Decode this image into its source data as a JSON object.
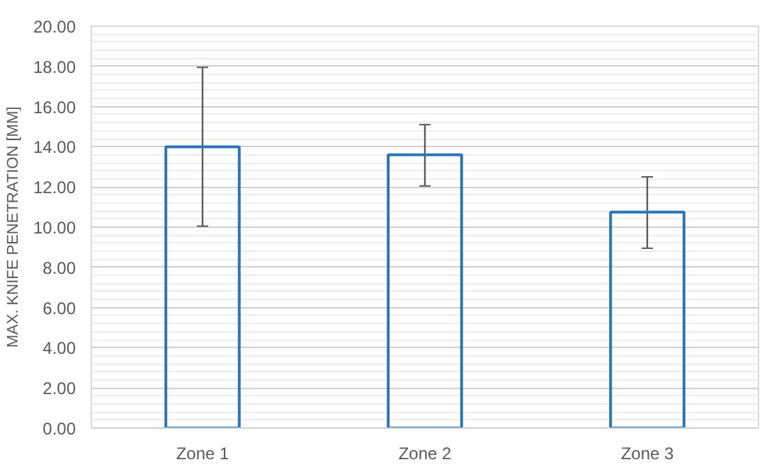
{
  "chart_data": {
    "type": "bar",
    "ylabel": "MAX. KNIFE PENETRATION [MM]",
    "categories": [
      "Zone 1",
      "Zone 2",
      "Zone 3"
    ],
    "values": [
      14.0,
      13.6,
      10.75
    ],
    "color": "#2e75b6",
    "errors": [
      [
        10.05,
        17.95
      ],
      [
        12.05,
        15.1
      ],
      [
        8.95,
        12.5
      ]
    ],
    "ylim": [
      0,
      20
    ],
    "yticks": [
      {
        "value": 0,
        "label": "0.00"
      },
      {
        "value": 2,
        "label": "2.00"
      },
      {
        "value": 4,
        "label": "4.00"
      },
      {
        "value": 6,
        "label": "6.00"
      },
      {
        "value": 8,
        "label": "8.00"
      },
      {
        "value": 10,
        "label": "10.00"
      },
      {
        "value": 12,
        "label": "12.00"
      },
      {
        "value": 14,
        "label": "14.00"
      },
      {
        "value": 16,
        "label": "16.00"
      },
      {
        "value": 18,
        "label": "18.00"
      },
      {
        "value": 20,
        "label": "20.00"
      }
    ],
    "grid": "y"
  }
}
